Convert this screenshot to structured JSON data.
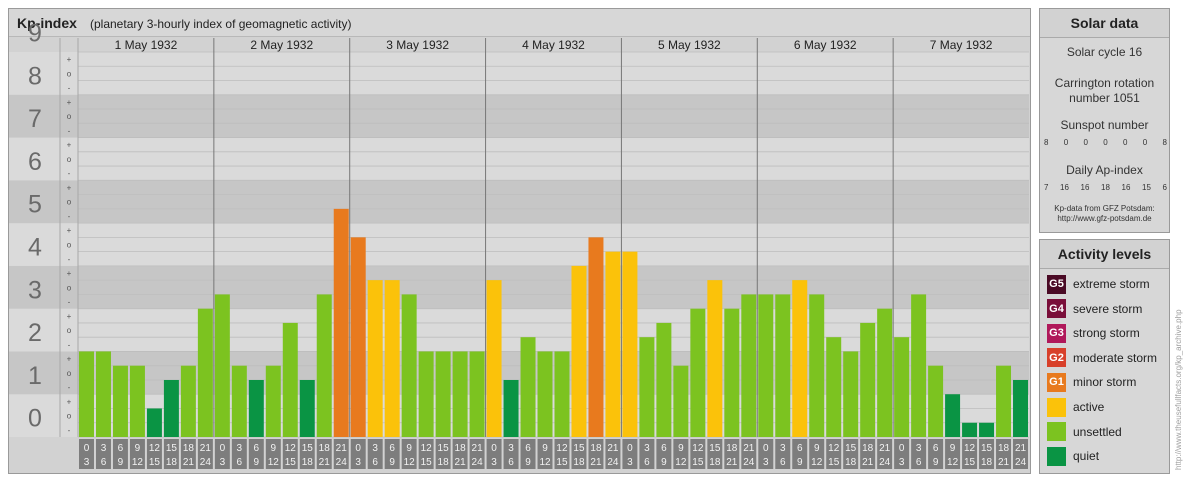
{
  "header": {
    "title": "Kp-index",
    "subtitle": "(planetary 3-hourly index of geomagnetic activity)"
  },
  "chart_data": {
    "type": "bar",
    "title": "Kp-index",
    "subtitle": "(planetary 3-hourly index of geomagnetic activity)",
    "ylim": [
      0,
      9
    ],
    "y_ticks": [
      "0",
      "1",
      "2",
      "3",
      "4",
      "5",
      "6",
      "7",
      "8",
      "9"
    ],
    "minor_ticks": [
      "+",
      "o",
      "-"
    ],
    "days": [
      "1 May 1932",
      "2 May 1932",
      "3 May 1932",
      "4 May 1932",
      "5 May 1932",
      "6 May 1932",
      "7 May 1932"
    ],
    "interval_starts": [
      "0",
      "3",
      "6",
      "9",
      "12",
      "15",
      "18",
      "21"
    ],
    "interval_ends": [
      "3",
      "6",
      "9",
      "12",
      "15",
      "18",
      "21",
      "24"
    ],
    "values": [
      [
        2.0,
        2.0,
        1.667,
        1.667,
        0.667,
        1.333,
        1.667,
        3.0
      ],
      [
        3.333,
        1.667,
        1.333,
        1.667,
        2.667,
        1.333,
        3.333,
        5.333
      ],
      [
        4.667,
        3.667,
        3.667,
        3.333,
        2.0,
        2.0,
        2.0,
        2.0
      ],
      [
        3.667,
        1.333,
        2.333,
        2.0,
        2.0,
        4.0,
        4.667,
        4.333
      ],
      [
        4.333,
        2.333,
        2.667,
        1.667,
        3.0,
        3.667,
        3.0,
        3.333
      ],
      [
        3.333,
        3.333,
        3.667,
        3.333,
        2.333,
        2.0,
        2.667,
        3.0
      ],
      [
        2.333,
        3.333,
        1.667,
        1.0,
        0.333,
        0.333,
        1.667,
        1.333
      ]
    ],
    "grid": true
  },
  "solar": {
    "title": "Solar data",
    "cycle": "Solar cycle 16",
    "carrington_line1": "Carrington rotation",
    "carrington_line2": "number 1051",
    "sunspot_title": "Sunspot number",
    "sunspot_values": [
      "8",
      "0",
      "0",
      "0",
      "0",
      "0",
      "8"
    ],
    "ap_title": "Daily Ap-index",
    "ap_values": [
      "7",
      "16",
      "16",
      "18",
      "16",
      "15",
      "6"
    ],
    "source_line1": "Kp-data from GFZ Potsdam:",
    "source_line2": "http://www.gfz-potsdam.de"
  },
  "levels": {
    "title": "Activity levels",
    "items": [
      {
        "badge": "G5",
        "label": "extreme storm",
        "color": "#4a0a25"
      },
      {
        "badge": "G4",
        "label": "severe storm",
        "color": "#7a0f3a"
      },
      {
        "badge": "G3",
        "label": "strong storm",
        "color": "#b0185a"
      },
      {
        "badge": "G2",
        "label": "moderate storm",
        "color": "#d8402a"
      },
      {
        "badge": "G1",
        "label": "minor storm",
        "color": "#e87a1e"
      },
      {
        "badge": "",
        "label": "active",
        "color": "#fbc20a"
      },
      {
        "badge": "",
        "label": "unsettled",
        "color": "#7cc320"
      },
      {
        "badge": "",
        "label": "quiet",
        "color": "#0a9444"
      }
    ]
  },
  "watermark": "http://www.theusefullfacts.org/kp_archive.php",
  "colors": {
    "quiet": "#0a9444",
    "unsettled": "#7cc320",
    "active": "#fbc20a",
    "minor_storm": "#e87a1e",
    "axis_label": "#6a6a6a",
    "band_dark": "#c6c6c6",
    "band_light": "#dadada"
  }
}
